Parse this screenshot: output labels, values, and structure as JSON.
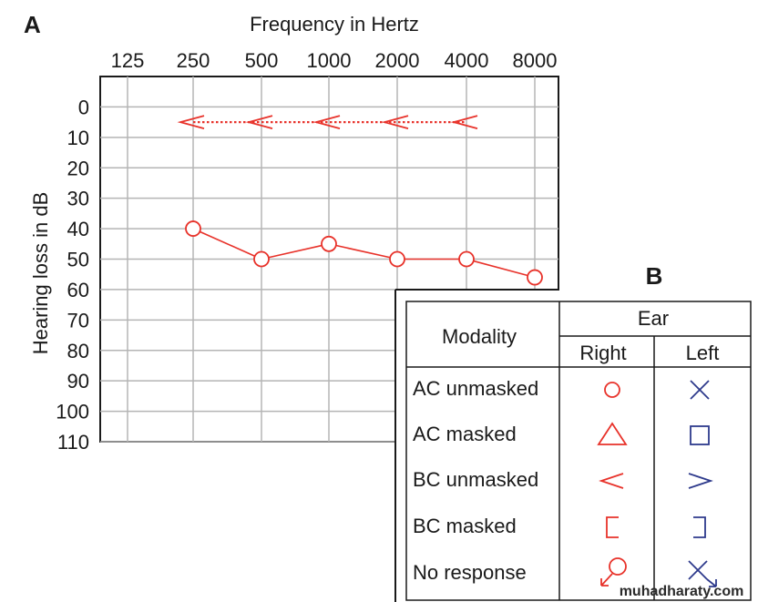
{
  "panel_a_label": "A",
  "panel_b_label": "B",
  "chart_data": {
    "type": "line",
    "xlabel": "Frequency in Hertz",
    "ylabel": "Hearing loss in dB",
    "x_ticks": [
      "125",
      "250",
      "500",
      "1000",
      "2000",
      "4000",
      "8000"
    ],
    "y_ticks": [
      "0",
      "10",
      "20",
      "30",
      "40",
      "50",
      "60",
      "70",
      "80",
      "90",
      "100",
      "110"
    ],
    "ylim": [
      -10,
      110
    ],
    "y_inverted": true,
    "grid": true,
    "series": [
      {
        "symbol": "circle",
        "color": "#e8322a",
        "x": [
          "250",
          "500",
          "1000",
          "2000",
          "4000",
          "8000"
        ],
        "y": [
          40,
          50,
          45,
          50,
          50,
          56
        ]
      },
      {
        "symbol": "less-than",
        "color": "#e8322a",
        "line_style": "dotted",
        "x": [
          "250",
          "500",
          "1000",
          "2000",
          "4000"
        ],
        "y": [
          5,
          5,
          5,
          5,
          5
        ]
      }
    ]
  },
  "legend_table": {
    "col_modality": "Modality",
    "col_ear": "Ear",
    "col_right": "Right",
    "col_left": "Left",
    "right_color": "#e8322a",
    "left_color": "#2e3a8c",
    "rows": [
      {
        "label": "AC unmasked",
        "right_symbol": "circle",
        "left_symbol": "cross"
      },
      {
        "label": "AC masked",
        "right_symbol": "triangle",
        "left_symbol": "square"
      },
      {
        "label": "BC unmasked",
        "right_symbol": "less-than",
        "left_symbol": "greater-than"
      },
      {
        "label": "BC masked",
        "right_symbol": "open-bracket",
        "left_symbol": "close-bracket"
      },
      {
        "label": "No response",
        "right_symbol": "circle-with-arrow",
        "left_symbol": "cross-with-arrow"
      }
    ]
  },
  "watermark": "muhadharaty.com"
}
